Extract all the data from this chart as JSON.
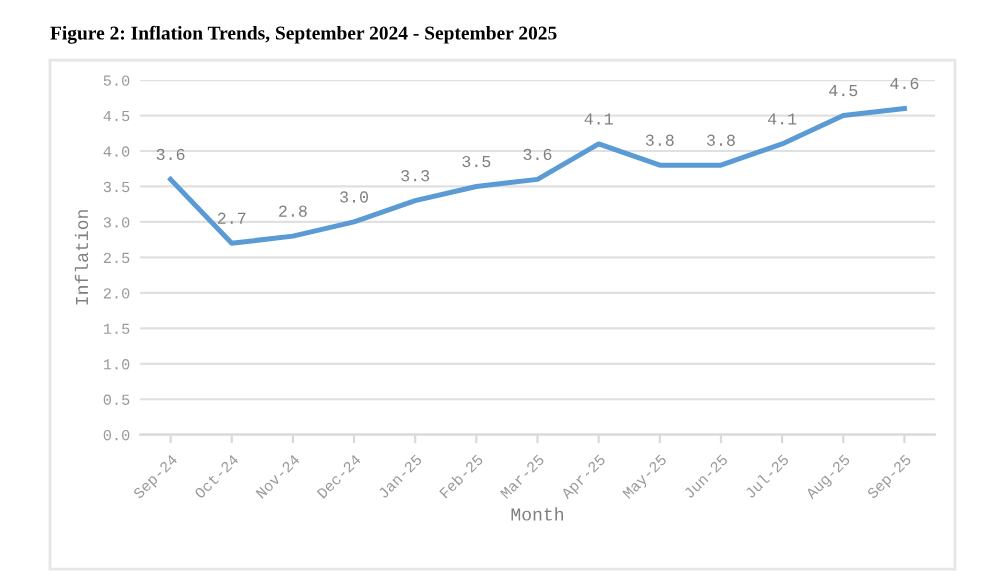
{
  "chart_data": {
    "type": "line",
    "title": "Figure 2: Inflation Trends, September 2024 - September 2025",
    "xlabel": "Month",
    "ylabel": "Inflation",
    "categories": [
      "Sep-24",
      "Oct-24",
      "Nov-24",
      "Dec-24",
      "Jan-25",
      "Feb-25",
      "Mar-25",
      "Apr-25",
      "May-25",
      "Jun-25",
      "Jul-25",
      "Aug-25",
      "Sep-25"
    ],
    "series": [
      {
        "color": "#5b9bd5",
        "values": [
          3.6,
          2.7,
          2.8,
          3.0,
          3.3,
          3.5,
          3.6,
          4.1,
          3.8,
          3.8,
          4.1,
          4.5,
          4.6
        ],
        "value_labels": [
          "3.6",
          "2.7",
          "2.8",
          "3.0",
          "3.3",
          "3.5",
          "3.6",
          "4.1",
          "3.8",
          "3.8",
          "4.1",
          "4.5",
          "4.6"
        ]
      }
    ],
    "ylim": [
      0,
      5
    ],
    "yticks": [
      {
        "value": 0,
        "label": "0.0"
      },
      {
        "value": 0.5,
        "label": "0.5"
      },
      {
        "value": 1,
        "label": "1.0"
      },
      {
        "value": 1.5,
        "label": "1.5"
      },
      {
        "value": 2,
        "label": "2.0"
      },
      {
        "value": 2.5,
        "label": "2.5"
      },
      {
        "value": 3,
        "label": "3.0"
      },
      {
        "value": 3.5,
        "label": "3.5"
      },
      {
        "value": 4,
        "label": "4.0"
      },
      {
        "value": 4.5,
        "label": "4.5"
      },
      {
        "value": 5,
        "label": "5.0"
      }
    ],
    "grid": "y",
    "marker": "none",
    "line_style": "solid",
    "legend": false
  }
}
